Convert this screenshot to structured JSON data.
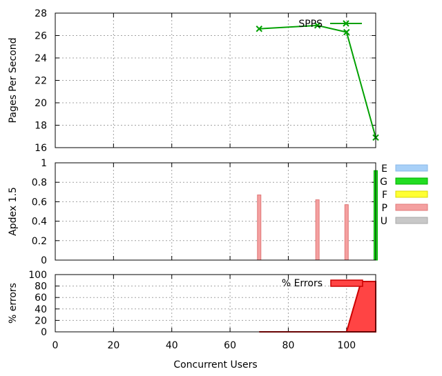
{
  "chart_data": [
    {
      "type": "line",
      "ylabel": "Pages Per Second",
      "xlim": [
        0,
        110
      ],
      "ylim": [
        16,
        28
      ],
      "yticks": [
        16,
        18,
        20,
        22,
        24,
        26,
        28
      ],
      "xticks": [
        0,
        20,
        40,
        60,
        80,
        100
      ],
      "grid": true,
      "legend_position": "top-right",
      "series": [
        {
          "name": "SPPS",
          "color": "#00a000",
          "marker": "x",
          "x": [
            70,
            90,
            100,
            110
          ],
          "y": [
            26.6,
            26.9,
            26.3,
            16.9
          ]
        }
      ]
    },
    {
      "type": "bar",
      "ylabel": "Apdex 1.5",
      "xlim": [
        0,
        110
      ],
      "ylim": [
        0,
        1
      ],
      "yticks": [
        "0",
        "0.2",
        "0.4",
        "0.6",
        "0.8",
        "1"
      ],
      "xticks": [
        0,
        20,
        40,
        60,
        80,
        100
      ],
      "grid": true,
      "legend_position": "outside-right",
      "legend": [
        {
          "name": "E",
          "color": "#a8d0f8"
        },
        {
          "name": "G",
          "color": "#22dd22"
        },
        {
          "name": "F",
          "color": "#ffff33"
        },
        {
          "name": "P",
          "color": "#f4a0a0"
        },
        {
          "name": "U",
          "color": "#c8c8c8"
        }
      ],
      "bars": [
        {
          "x": 70,
          "value": 0.67,
          "category": "P"
        },
        {
          "x": 90,
          "value": 0.62,
          "category": "P"
        },
        {
          "x": 100,
          "value": 0.57,
          "category": "P"
        },
        {
          "x": 110,
          "value": 0.92,
          "category": "G"
        }
      ]
    },
    {
      "type": "area",
      "ylabel": "% errors",
      "xlabel": "Concurrent Users",
      "xlim": [
        0,
        110
      ],
      "ylim": [
        0,
        100
      ],
      "yticks": [
        0,
        20,
        40,
        60,
        80,
        100
      ],
      "xticks": [
        0,
        20,
        40,
        60,
        80,
        100
      ],
      "grid": true,
      "legend_position": "top-right",
      "series": [
        {
          "name": "% Errors",
          "color": "#ff4444",
          "x": [
            70,
            90,
            100,
            105,
            110
          ],
          "y": [
            0,
            0,
            0,
            88,
            88
          ]
        }
      ]
    }
  ]
}
